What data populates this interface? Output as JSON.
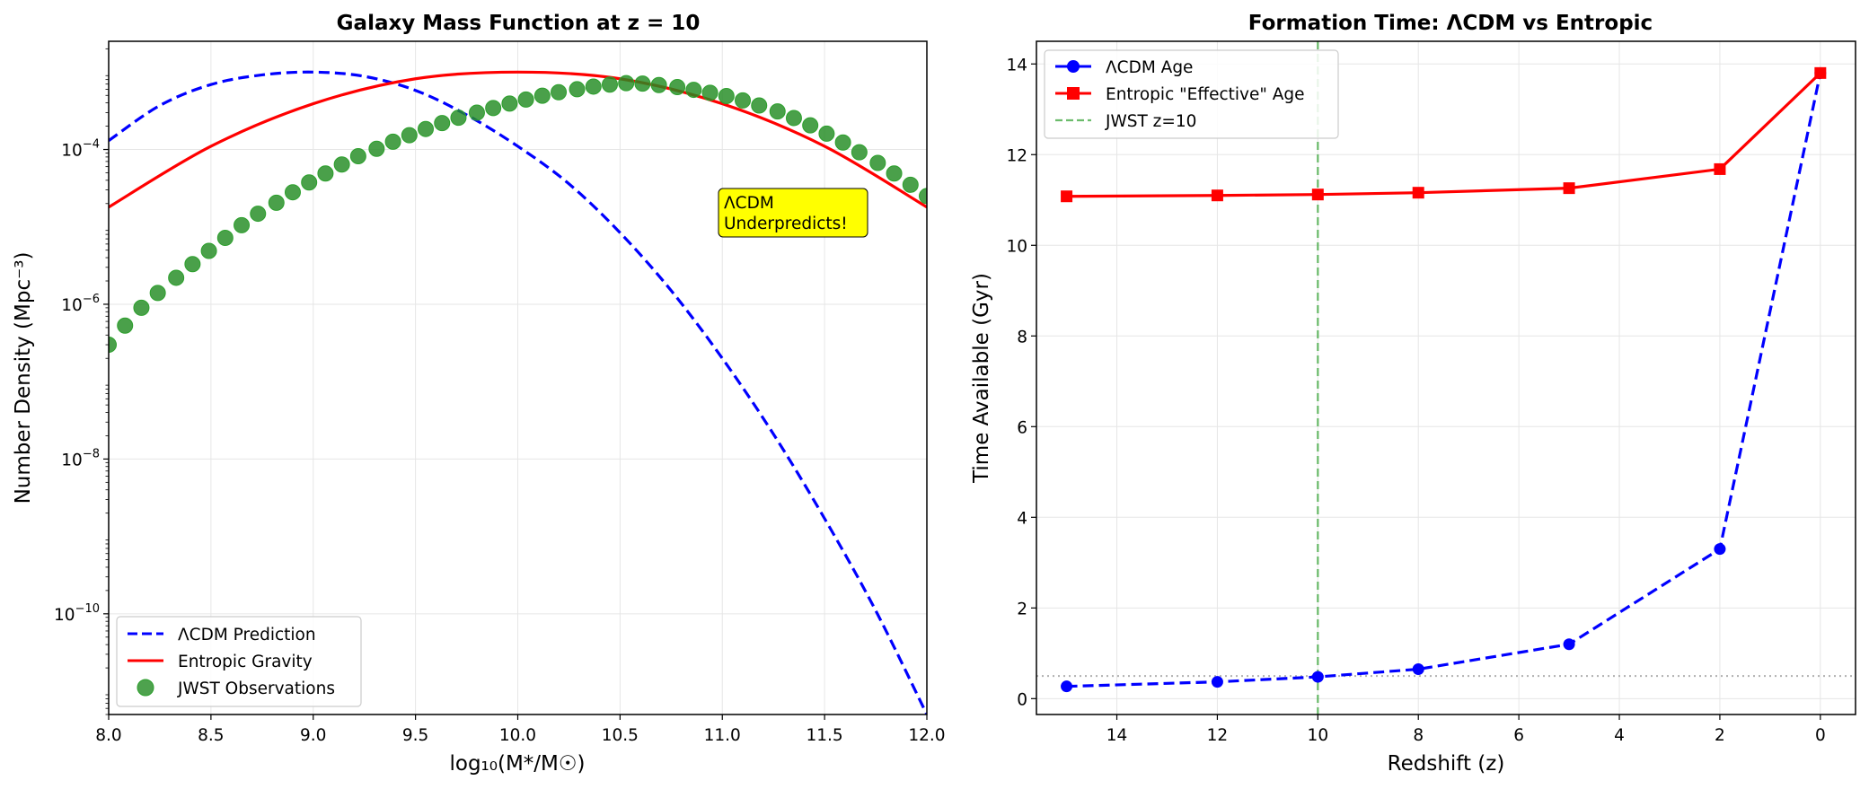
{
  "colors": {
    "lcdm": "#0000ff",
    "entropic": "#ff0000",
    "jwst": "#2ca02c",
    "jwst_fill": "#228b22",
    "grid": "#e6e6e6",
    "annotation_bg": "#ffff00",
    "reference_line": "#b0b0b0"
  },
  "chart_data": [
    {
      "type": "line",
      "title": "Galaxy Mass Function at z = 10",
      "xlabel": "log₁₀(M*/M☉)",
      "ylabel": "Number Density (Mpc⁻³)",
      "xlim": [
        8.0,
        12.0
      ],
      "ylim": [
        5e-12,
        0.0025
      ],
      "yscale": "log",
      "grid": true,
      "legend_position": "lower-left",
      "xticks": [
        "8.0",
        "8.5",
        "9.0",
        "9.5",
        "10.0",
        "10.5",
        "11.0",
        "11.5",
        "12.0"
      ],
      "yticks": [
        {
          "base": "10",
          "exp": "−4",
          "value": 0.0001
        },
        {
          "base": "10",
          "exp": "−6",
          "value": 1e-06
        },
        {
          "base": "10",
          "exp": "−8",
          "value": 1e-08
        },
        {
          "base": "10",
          "exp": "−10",
          "value": 1e-10
        }
      ],
      "annotation": {
        "lines": [
          "ΛCDM",
          "Underpredicts!"
        ],
        "x": 11.0,
        "y": 1e-05
      },
      "series": [
        {
          "name": "ΛCDM Prediction",
          "style": "dashed",
          "kind": "line",
          "x": [
            8.0,
            8.25,
            8.5,
            8.75,
            9.0,
            9.25,
            9.5,
            9.75,
            10.0,
            10.25,
            10.5,
            10.75,
            11.0,
            11.25,
            11.5,
            11.75,
            12.0
          ],
          "y": [
            0.00013,
            0.00037,
            0.00069,
            0.00092,
            0.001,
            0.00088,
            0.00058,
            0.00028,
            0.00011,
            3.6e-05,
            8.4e-06,
            1.5e-06,
            2e-07,
            2.1e-08,
            1.7e-09,
            1.1e-10,
            5e-12
          ]
        },
        {
          "name": "Entropic Gravity",
          "style": "solid",
          "kind": "line",
          "x": [
            8.0,
            8.5,
            9.0,
            9.5,
            10.0,
            10.5,
            11.0,
            11.5,
            12.0
          ],
          "y": [
            1.8e-05,
            0.00011,
            0.00039,
            0.00082,
            0.001,
            0.00082,
            0.00039,
            0.00011,
            1.8e-05
          ]
        },
        {
          "name": "JWST Observations",
          "style": "marker",
          "kind": "scatter",
          "x": [
            8.0,
            8.08,
            8.16,
            8.24,
            8.33,
            8.41,
            8.49,
            8.57,
            8.65,
            8.73,
            8.82,
            8.9,
            8.98,
            9.06,
            9.14,
            9.22,
            9.31,
            9.39,
            9.47,
            9.55,
            9.63,
            9.71,
            9.8,
            9.88,
            9.96,
            10.04,
            10.12,
            10.2,
            10.29,
            10.37,
            10.45,
            10.53,
            10.61,
            10.69,
            10.78,
            10.86,
            10.94,
            11.02,
            11.1,
            11.18,
            11.27,
            11.35,
            11.43,
            11.51,
            11.59,
            11.67,
            11.76,
            11.84,
            11.92,
            12.0
          ],
          "y": [
            3e-07,
            5.3e-07,
            9e-07,
            1.4e-06,
            2.2e-06,
            3.3e-06,
            4.9e-06,
            7.2e-06,
            1.05e-05,
            1.48e-05,
            2.05e-05,
            2.8e-05,
            3.75e-05,
            4.9e-05,
            6.4e-05,
            8.2e-05,
            0.000102,
            0.000126,
            0.000153,
            0.000184,
            0.000219,
            0.000257,
            0.000299,
            0.000343,
            0.000392,
            0.000442,
            0.000495,
            0.000549,
            0.0006,
            0.00065,
            0.00069,
            0.00072,
            0.00071,
            0.00068,
            0.00064,
            0.00059,
            0.00054,
            0.00049,
            0.00043,
            0.00037,
            0.00031,
            0.000255,
            0.000205,
            0.00016,
            0.000123,
            9.2e-05,
            6.7e-05,
            4.9e-05,
            3.5e-05,
            2.5e-05
          ]
        }
      ]
    },
    {
      "type": "line",
      "title": "Formation Time: ΛCDM vs Entropic",
      "xlabel": "Redshift (z)",
      "ylabel": "Time Available (Gyr)",
      "xlim": [
        15.6,
        -0.7
      ],
      "ylim": [
        -0.35,
        14.5
      ],
      "grid": true,
      "legend_position": "upper-left",
      "xticks": [
        "14",
        "12",
        "10",
        "8",
        "6",
        "4",
        "2",
        "0"
      ],
      "yticks": [
        "0",
        "2",
        "4",
        "6",
        "8",
        "10",
        "12",
        "14"
      ],
      "vline": {
        "name": "JWST z=10",
        "x": 10
      },
      "hline": {
        "y": 0.5
      },
      "series": [
        {
          "name": "ΛCDM Age",
          "style": "dashed",
          "marker": "circle",
          "x": [
            15,
            12,
            10,
            8,
            5,
            2,
            0
          ],
          "y": [
            0.27,
            0.37,
            0.48,
            0.65,
            1.2,
            3.3,
            13.8
          ]
        },
        {
          "name": "Entropic \"Effective\" Age",
          "style": "solid",
          "marker": "square",
          "x": [
            15,
            12,
            10,
            8,
            5,
            2,
            0
          ],
          "y": [
            11.08,
            11.1,
            11.12,
            11.16,
            11.26,
            11.68,
            13.8
          ]
        }
      ]
    }
  ]
}
